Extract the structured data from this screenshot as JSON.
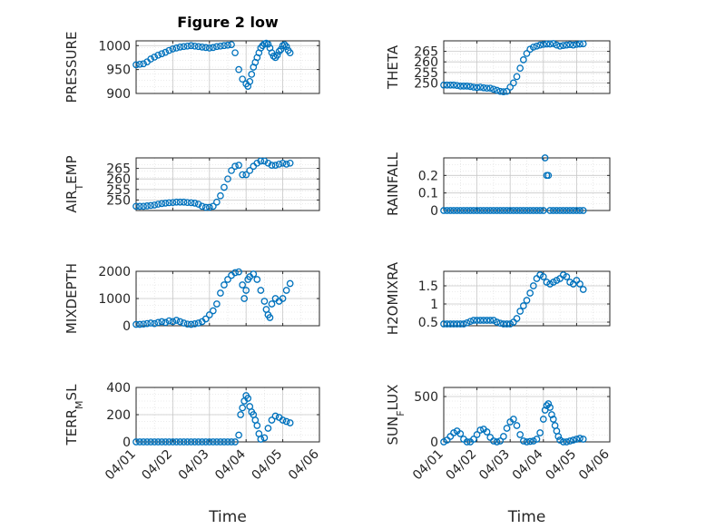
{
  "title": "Figure 2 low",
  "xlabel": "Time",
  "xtick_labels": [
    "04/01",
    "04/02",
    "04/03",
    "04/04",
    "04/05",
    "04/06"
  ],
  "chart_data": [
    {
      "type": "scatter",
      "title": "Figure 2 low",
      "ylabel": "PRESSURE",
      "ylabel_parts": [
        "PRESSURE"
      ],
      "ylim": [
        900,
        1010
      ],
      "yticks": [
        900,
        950,
        1000
      ],
      "xlabel": "",
      "grid": true,
      "color": "#0072BD",
      "x": [
        0.0,
        0.1,
        0.2,
        0.3,
        0.4,
        0.5,
        0.6,
        0.7,
        0.8,
        0.9,
        1.0,
        1.1,
        1.2,
        1.3,
        1.4,
        1.5,
        1.6,
        1.7,
        1.8,
        1.9,
        2.0,
        2.1,
        2.2,
        2.3,
        2.4,
        2.5,
        2.6,
        2.7,
        2.8,
        2.9,
        3.0,
        3.05,
        3.1,
        3.15,
        3.2,
        3.25,
        3.3,
        3.35,
        3.4,
        3.45,
        3.5,
        3.55,
        3.6,
        3.65,
        3.7,
        3.75,
        3.8,
        3.85,
        3.9,
        3.95,
        4.0,
        4.05,
        4.1,
        4.15,
        4.2
      ],
      "y": [
        960,
        961,
        962,
        966,
        972,
        976,
        980,
        983,
        986,
        990,
        993,
        995,
        997,
        998,
        999,
        1000,
        999,
        998,
        997,
        996,
        995,
        996,
        998,
        999,
        1000,
        1001,
        1002,
        985,
        950,
        930,
        920,
        915,
        925,
        940,
        955,
        965,
        975,
        985,
        995,
        1000,
        1004,
        1005,
        1003,
        995,
        985,
        978,
        975,
        980,
        988,
        992,
        1000,
        1002,
        998,
        990,
        985
      ]
    },
    {
      "type": "scatter",
      "ylabel": "THETA",
      "ylabel_parts": [
        "THETA"
      ],
      "ylim": [
        245,
        270
      ],
      "yticks": [
        250,
        255,
        260,
        265
      ],
      "xlabel": "",
      "grid": true,
      "color": "#0072BD",
      "x": [
        0.0,
        0.1,
        0.2,
        0.3,
        0.4,
        0.5,
        0.6,
        0.7,
        0.8,
        0.9,
        1.0,
        1.1,
        1.2,
        1.3,
        1.4,
        1.5,
        1.6,
        1.7,
        1.8,
        1.9,
        2.0,
        2.1,
        2.2,
        2.3,
        2.4,
        2.5,
        2.6,
        2.7,
        2.8,
        2.9,
        3.0,
        3.1,
        3.2,
        3.3,
        3.4,
        3.5,
        3.6,
        3.7,
        3.8,
        3.9,
        4.0,
        4.1,
        4.2
      ],
      "y": [
        249,
        249,
        249,
        249,
        248.8,
        248.5,
        248.5,
        248.5,
        248.3,
        248,
        247.8,
        248,
        247.7,
        247.5,
        247.5,
        247,
        246.5,
        246,
        245.8,
        246,
        248,
        250,
        253,
        257,
        261,
        264,
        266,
        267,
        267.5,
        268,
        268.3,
        268.5,
        268.5,
        268.7,
        268,
        267.5,
        267.8,
        268,
        268.2,
        268,
        268.3,
        268.5,
        268.6
      ]
    },
    {
      "type": "scatter",
      "ylabel": "AIR_TEMP",
      "ylabel_parts": [
        "AIR",
        "T",
        "EMP"
      ],
      "ylim": [
        245,
        270
      ],
      "yticks": [
        250,
        255,
        260,
        265
      ],
      "xlabel": "",
      "grid": true,
      "color": "#0072BD",
      "x": [
        0.0,
        0.1,
        0.2,
        0.3,
        0.4,
        0.5,
        0.6,
        0.7,
        0.8,
        0.9,
        1.0,
        1.1,
        1.2,
        1.3,
        1.4,
        1.5,
        1.6,
        1.7,
        1.8,
        1.9,
        2.0,
        2.1,
        2.2,
        2.3,
        2.4,
        2.5,
        2.6,
        2.7,
        2.8,
        2.9,
        3.0,
        3.1,
        3.2,
        3.3,
        3.4,
        3.5,
        3.6,
        3.7,
        3.8,
        3.9,
        4.0,
        4.1,
        4.2
      ],
      "y": [
        247,
        247,
        247,
        247.2,
        247.4,
        247.6,
        248,
        248.3,
        248.5,
        248.7,
        248.8,
        249,
        249,
        249,
        248.8,
        248.7,
        248.5,
        248,
        247,
        246.5,
        246.5,
        247,
        249,
        252,
        256,
        260,
        264,
        266,
        266.5,
        262,
        262,
        264,
        266,
        267.5,
        268.5,
        268.5,
        267.5,
        266.5,
        266.5,
        267,
        267.5,
        267,
        267.5
      ]
    },
    {
      "type": "scatter",
      "ylabel": "RAINFALL",
      "ylabel_parts": [
        "RAINFALL"
      ],
      "ylim": [
        0,
        0.3
      ],
      "yticks": [
        0,
        0.1,
        0.2
      ],
      "xlabel": "",
      "grid": true,
      "color": "#0072BD",
      "x": [
        0.0,
        0.1,
        0.2,
        0.3,
        0.4,
        0.5,
        0.6,
        0.7,
        0.8,
        0.9,
        1.0,
        1.1,
        1.2,
        1.3,
        1.4,
        1.5,
        1.6,
        1.7,
        1.8,
        1.9,
        2.0,
        2.1,
        2.2,
        2.3,
        2.4,
        2.5,
        2.6,
        2.7,
        2.8,
        2.9,
        3.0,
        3.05,
        3.1,
        3.15,
        3.2,
        3.3,
        3.4,
        3.5,
        3.6,
        3.7,
        3.8,
        3.9,
        4.0,
        4.1,
        4.2
      ],
      "y": [
        0,
        0,
        0,
        0,
        0,
        0,
        0,
        0,
        0,
        0,
        0,
        0,
        0,
        0,
        0,
        0,
        0,
        0,
        0,
        0,
        0,
        0,
        0,
        0,
        0,
        0,
        0,
        0,
        0,
        0,
        0,
        0.3,
        0.2,
        0.2,
        0,
        0,
        0,
        0,
        0,
        0,
        0,
        0,
        0,
        0,
        0
      ]
    },
    {
      "type": "scatter",
      "ylabel": "MIXDEPTH",
      "ylabel_parts": [
        "MIXDEPTH"
      ],
      "ylim": [
        0,
        2000
      ],
      "yticks": [
        0,
        1000,
        2000
      ],
      "xlabel": "",
      "grid": true,
      "color": "#0072BD",
      "x": [
        0.0,
        0.1,
        0.2,
        0.3,
        0.4,
        0.5,
        0.6,
        0.7,
        0.8,
        0.9,
        1.0,
        1.1,
        1.2,
        1.3,
        1.4,
        1.5,
        1.6,
        1.7,
        1.8,
        1.9,
        2.0,
        2.1,
        2.2,
        2.3,
        2.4,
        2.5,
        2.6,
        2.7,
        2.8,
        2.9,
        2.95,
        3.0,
        3.05,
        3.1,
        3.2,
        3.3,
        3.4,
        3.5,
        3.55,
        3.6,
        3.65,
        3.7,
        3.8,
        3.9,
        4.0,
        4.1,
        4.2
      ],
      "y": [
        50,
        50,
        60,
        80,
        100,
        80,
        120,
        150,
        120,
        180,
        150,
        200,
        150,
        100,
        60,
        50,
        70,
        100,
        150,
        250,
        400,
        550,
        800,
        1200,
        1500,
        1700,
        1850,
        1950,
        1980,
        1500,
        1000,
        1300,
        1700,
        1800,
        1900,
        1700,
        1300,
        900,
        600,
        400,
        300,
        800,
        1000,
        900,
        1000,
        1300,
        1550
      ]
    },
    {
      "type": "scatter",
      "ylabel": "H2OMIXRA",
      "ylabel_parts": [
        "H2OMIXRA"
      ],
      "ylim": [
        0.4,
        1.9
      ],
      "yticks": [
        0.5,
        1,
        1.5
      ],
      "xlabel": "",
      "grid": true,
      "color": "#0072BD",
      "x": [
        0.0,
        0.1,
        0.2,
        0.3,
        0.4,
        0.5,
        0.6,
        0.7,
        0.8,
        0.9,
        1.0,
        1.1,
        1.2,
        1.3,
        1.4,
        1.5,
        1.6,
        1.7,
        1.8,
        1.9,
        2.0,
        2.1,
        2.2,
        2.3,
        2.4,
        2.5,
        2.6,
        2.7,
        2.8,
        2.9,
        3.0,
        3.1,
        3.2,
        3.3,
        3.4,
        3.5,
        3.6,
        3.7,
        3.8,
        3.9,
        4.0,
        4.1,
        4.2
      ],
      "y": [
        0.45,
        0.45,
        0.45,
        0.45,
        0.45,
        0.45,
        0.45,
        0.48,
        0.52,
        0.55,
        0.55,
        0.55,
        0.55,
        0.55,
        0.55,
        0.55,
        0.5,
        0.47,
        0.45,
        0.45,
        0.45,
        0.5,
        0.6,
        0.8,
        0.95,
        1.1,
        1.3,
        1.5,
        1.7,
        1.8,
        1.75,
        1.6,
        1.55,
        1.6,
        1.65,
        1.7,
        1.8,
        1.75,
        1.6,
        1.55,
        1.65,
        1.55,
        1.4
      ]
    },
    {
      "type": "scatter",
      "ylabel": "TERR_MSL",
      "ylabel_parts": [
        "TERR",
        "M",
        "SL"
      ],
      "ylim": [
        0,
        400
      ],
      "yticks": [
        0,
        200,
        400
      ],
      "xlabel": "Time",
      "grid": true,
      "color": "#0072BD",
      "x": [
        0.0,
        0.1,
        0.2,
        0.3,
        0.4,
        0.5,
        0.6,
        0.7,
        0.8,
        0.9,
        1.0,
        1.1,
        1.2,
        1.3,
        1.4,
        1.5,
        1.6,
        1.7,
        1.8,
        1.9,
        2.0,
        2.1,
        2.2,
        2.3,
        2.4,
        2.5,
        2.6,
        2.7,
        2.8,
        2.85,
        2.9,
        2.95,
        3.0,
        3.05,
        3.1,
        3.15,
        3.2,
        3.25,
        3.3,
        3.35,
        3.4,
        3.5,
        3.6,
        3.7,
        3.8,
        3.9,
        4.0,
        4.1,
        4.2
      ],
      "y": [
        0,
        0,
        0,
        0,
        0,
        0,
        0,
        0,
        0,
        0,
        0,
        0,
        0,
        0,
        0,
        0,
        0,
        0,
        0,
        0,
        0,
        0,
        0,
        0,
        0,
        0,
        0,
        0,
        50,
        200,
        250,
        300,
        340,
        320,
        260,
        220,
        200,
        160,
        120,
        60,
        20,
        30,
        100,
        160,
        190,
        180,
        160,
        150,
        140
      ]
    },
    {
      "type": "scatter",
      "ylabel": "SUN_FLUX",
      "ylabel_parts": [
        "SUN",
        "F",
        "LUX"
      ],
      "ylim": [
        0,
        600
      ],
      "yticks": [
        0,
        500
      ],
      "xlabel": "Time",
      "grid": true,
      "color": "#0072BD",
      "x": [
        0.0,
        0.1,
        0.2,
        0.3,
        0.4,
        0.5,
        0.6,
        0.7,
        0.8,
        0.9,
        1.0,
        1.1,
        1.2,
        1.3,
        1.4,
        1.5,
        1.6,
        1.7,
        1.8,
        1.9,
        2.0,
        2.1,
        2.2,
        2.3,
        2.4,
        2.5,
        2.6,
        2.7,
        2.8,
        2.9,
        3.0,
        3.05,
        3.1,
        3.15,
        3.2,
        3.25,
        3.3,
        3.35,
        3.4,
        3.45,
        3.5,
        3.6,
        3.7,
        3.8,
        3.9,
        4.0,
        4.1,
        4.2
      ],
      "y": [
        0,
        20,
        60,
        100,
        120,
        90,
        30,
        0,
        0,
        30,
        80,
        130,
        140,
        110,
        50,
        10,
        0,
        10,
        60,
        150,
        220,
        250,
        180,
        80,
        10,
        0,
        5,
        10,
        30,
        100,
        250,
        350,
        400,
        420,
        380,
        300,
        250,
        180,
        120,
        60,
        20,
        0,
        0,
        10,
        20,
        30,
        40,
        30
      ]
    }
  ]
}
